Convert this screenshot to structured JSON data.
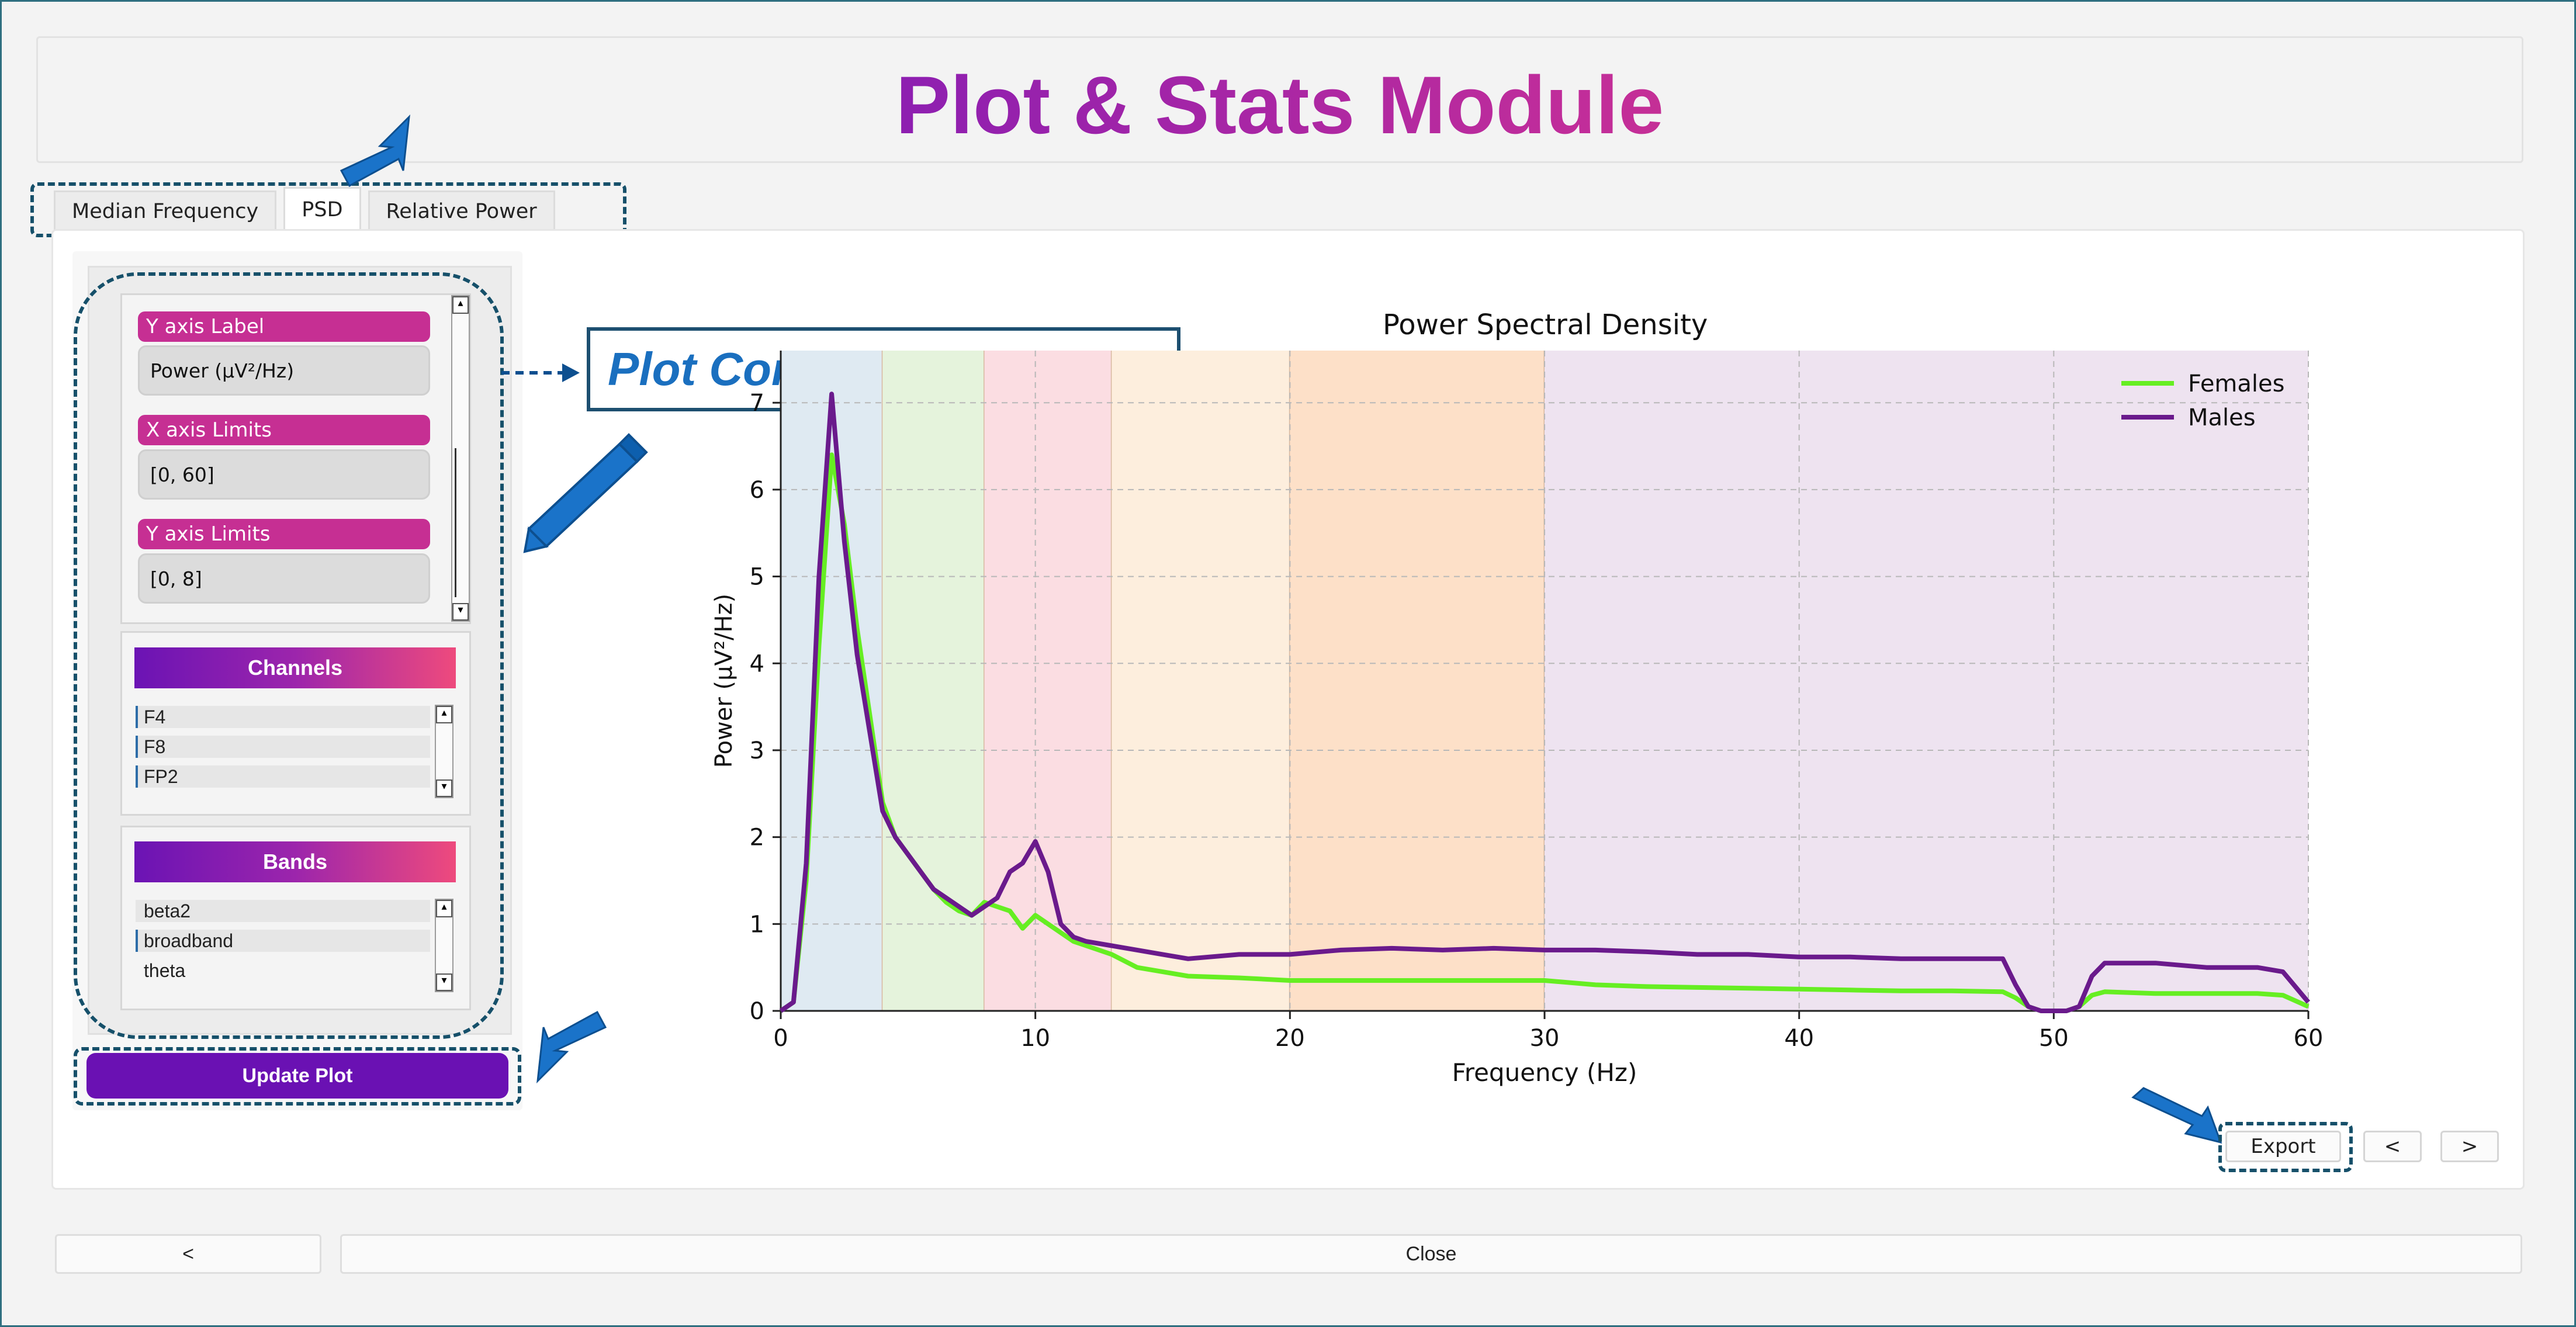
{
  "app_title": "Plot & Stats Module",
  "tabs": [
    {
      "label": "Median Frequency",
      "active": false
    },
    {
      "label": "PSD",
      "active": true
    },
    {
      "label": "Relative Power",
      "active": false
    }
  ],
  "config": {
    "y_axis_label": {
      "label": "Y axis Label",
      "value": "Power (μV²/Hz)"
    },
    "x_axis_limits": {
      "label": "X axis Limits",
      "value": "[0, 60]"
    },
    "y_axis_limits": {
      "label": "Y axis Limits",
      "value": "[0, 8]"
    },
    "channels": {
      "header": "Channels",
      "items": [
        "F4",
        "F8",
        "FP2"
      ]
    },
    "bands": {
      "header": "Bands",
      "items": [
        "beta2",
        "broadband",
        "theta"
      ]
    },
    "update_button": "Update Plot"
  },
  "callout": "Plot Configuration Panel",
  "chart_buttons": {
    "export": "Export",
    "prev": "<",
    "next": ">"
  },
  "footer": {
    "back": "<",
    "close": "Close"
  },
  "colors": {
    "females": "#66ee22",
    "males": "#6a1a8c",
    "accent": "#6a11b3",
    "annotation": "#1a73c9"
  },
  "chart_data": {
    "type": "line",
    "title": "Power Spectral Density",
    "xlabel": "Frequency (Hz)",
    "ylabel": "Power (µV²/Hz)",
    "xlim": [
      0,
      60
    ],
    "ylim": [
      0,
      7.6
    ],
    "x_ticks": [
      0,
      10,
      20,
      30,
      40,
      50,
      60
    ],
    "y_ticks": [
      0,
      1,
      2,
      3,
      4,
      5,
      6,
      7
    ],
    "grid": true,
    "legend_position": "top-right",
    "bands_shaded": [
      {
        "from": 0,
        "to": 4,
        "color": "#dfeaf2"
      },
      {
        "from": 4,
        "to": 8,
        "color": "#e5f3dc"
      },
      {
        "from": 8,
        "to": 13,
        "color": "#fbdde2"
      },
      {
        "from": 13,
        "to": 20,
        "color": "#fdeedd"
      },
      {
        "from": 20,
        "to": 30,
        "color": "#fde0c8"
      },
      {
        "from": 30,
        "to": 60,
        "color": "#eee3f0"
      }
    ],
    "x": [
      0,
      0.5,
      1,
      1.5,
      2,
      2.5,
      3,
      3.5,
      4,
      4.5,
      5,
      5.5,
      6,
      6.5,
      7,
      7.5,
      8,
      8.5,
      9,
      9.5,
      10,
      10.5,
      11,
      11.5,
      12,
      13,
      14,
      15,
      16,
      18,
      20,
      22,
      24,
      26,
      28,
      30,
      32,
      34,
      36,
      38,
      40,
      42,
      44,
      46,
      48,
      48.5,
      49,
      49.5,
      50,
      50.5,
      51,
      51.5,
      52,
      54,
      56,
      58,
      59,
      60
    ],
    "series": [
      {
        "name": "Females",
        "values": [
          0,
          0.1,
          1.5,
          4.2,
          6.4,
          5.6,
          4.4,
          3.4,
          2.4,
          2.0,
          1.8,
          1.6,
          1.4,
          1.25,
          1.15,
          1.1,
          1.25,
          1.2,
          1.15,
          0.95,
          1.1,
          1.0,
          0.9,
          0.8,
          0.75,
          0.65,
          0.5,
          0.45,
          0.4,
          0.38,
          0.35,
          0.35,
          0.35,
          0.35,
          0.35,
          0.35,
          0.3,
          0.28,
          0.27,
          0.26,
          0.25,
          0.24,
          0.23,
          0.23,
          0.22,
          0.15,
          0.05,
          0,
          0,
          0,
          0.05,
          0.18,
          0.22,
          0.2,
          0.2,
          0.2,
          0.18,
          0.05
        ]
      },
      {
        "name": "Males",
        "values": [
          0,
          0.1,
          1.7,
          5.0,
          7.1,
          5.4,
          4.1,
          3.2,
          2.3,
          2.0,
          1.8,
          1.6,
          1.4,
          1.3,
          1.2,
          1.1,
          1.2,
          1.3,
          1.6,
          1.7,
          1.95,
          1.6,
          1.0,
          0.85,
          0.8,
          0.75,
          0.7,
          0.65,
          0.6,
          0.65,
          0.65,
          0.7,
          0.72,
          0.7,
          0.72,
          0.7,
          0.7,
          0.68,
          0.65,
          0.65,
          0.62,
          0.62,
          0.6,
          0.6,
          0.6,
          0.3,
          0.05,
          0,
          0,
          0,
          0.05,
          0.4,
          0.55,
          0.55,
          0.5,
          0.5,
          0.45,
          0.1
        ]
      }
    ]
  }
}
